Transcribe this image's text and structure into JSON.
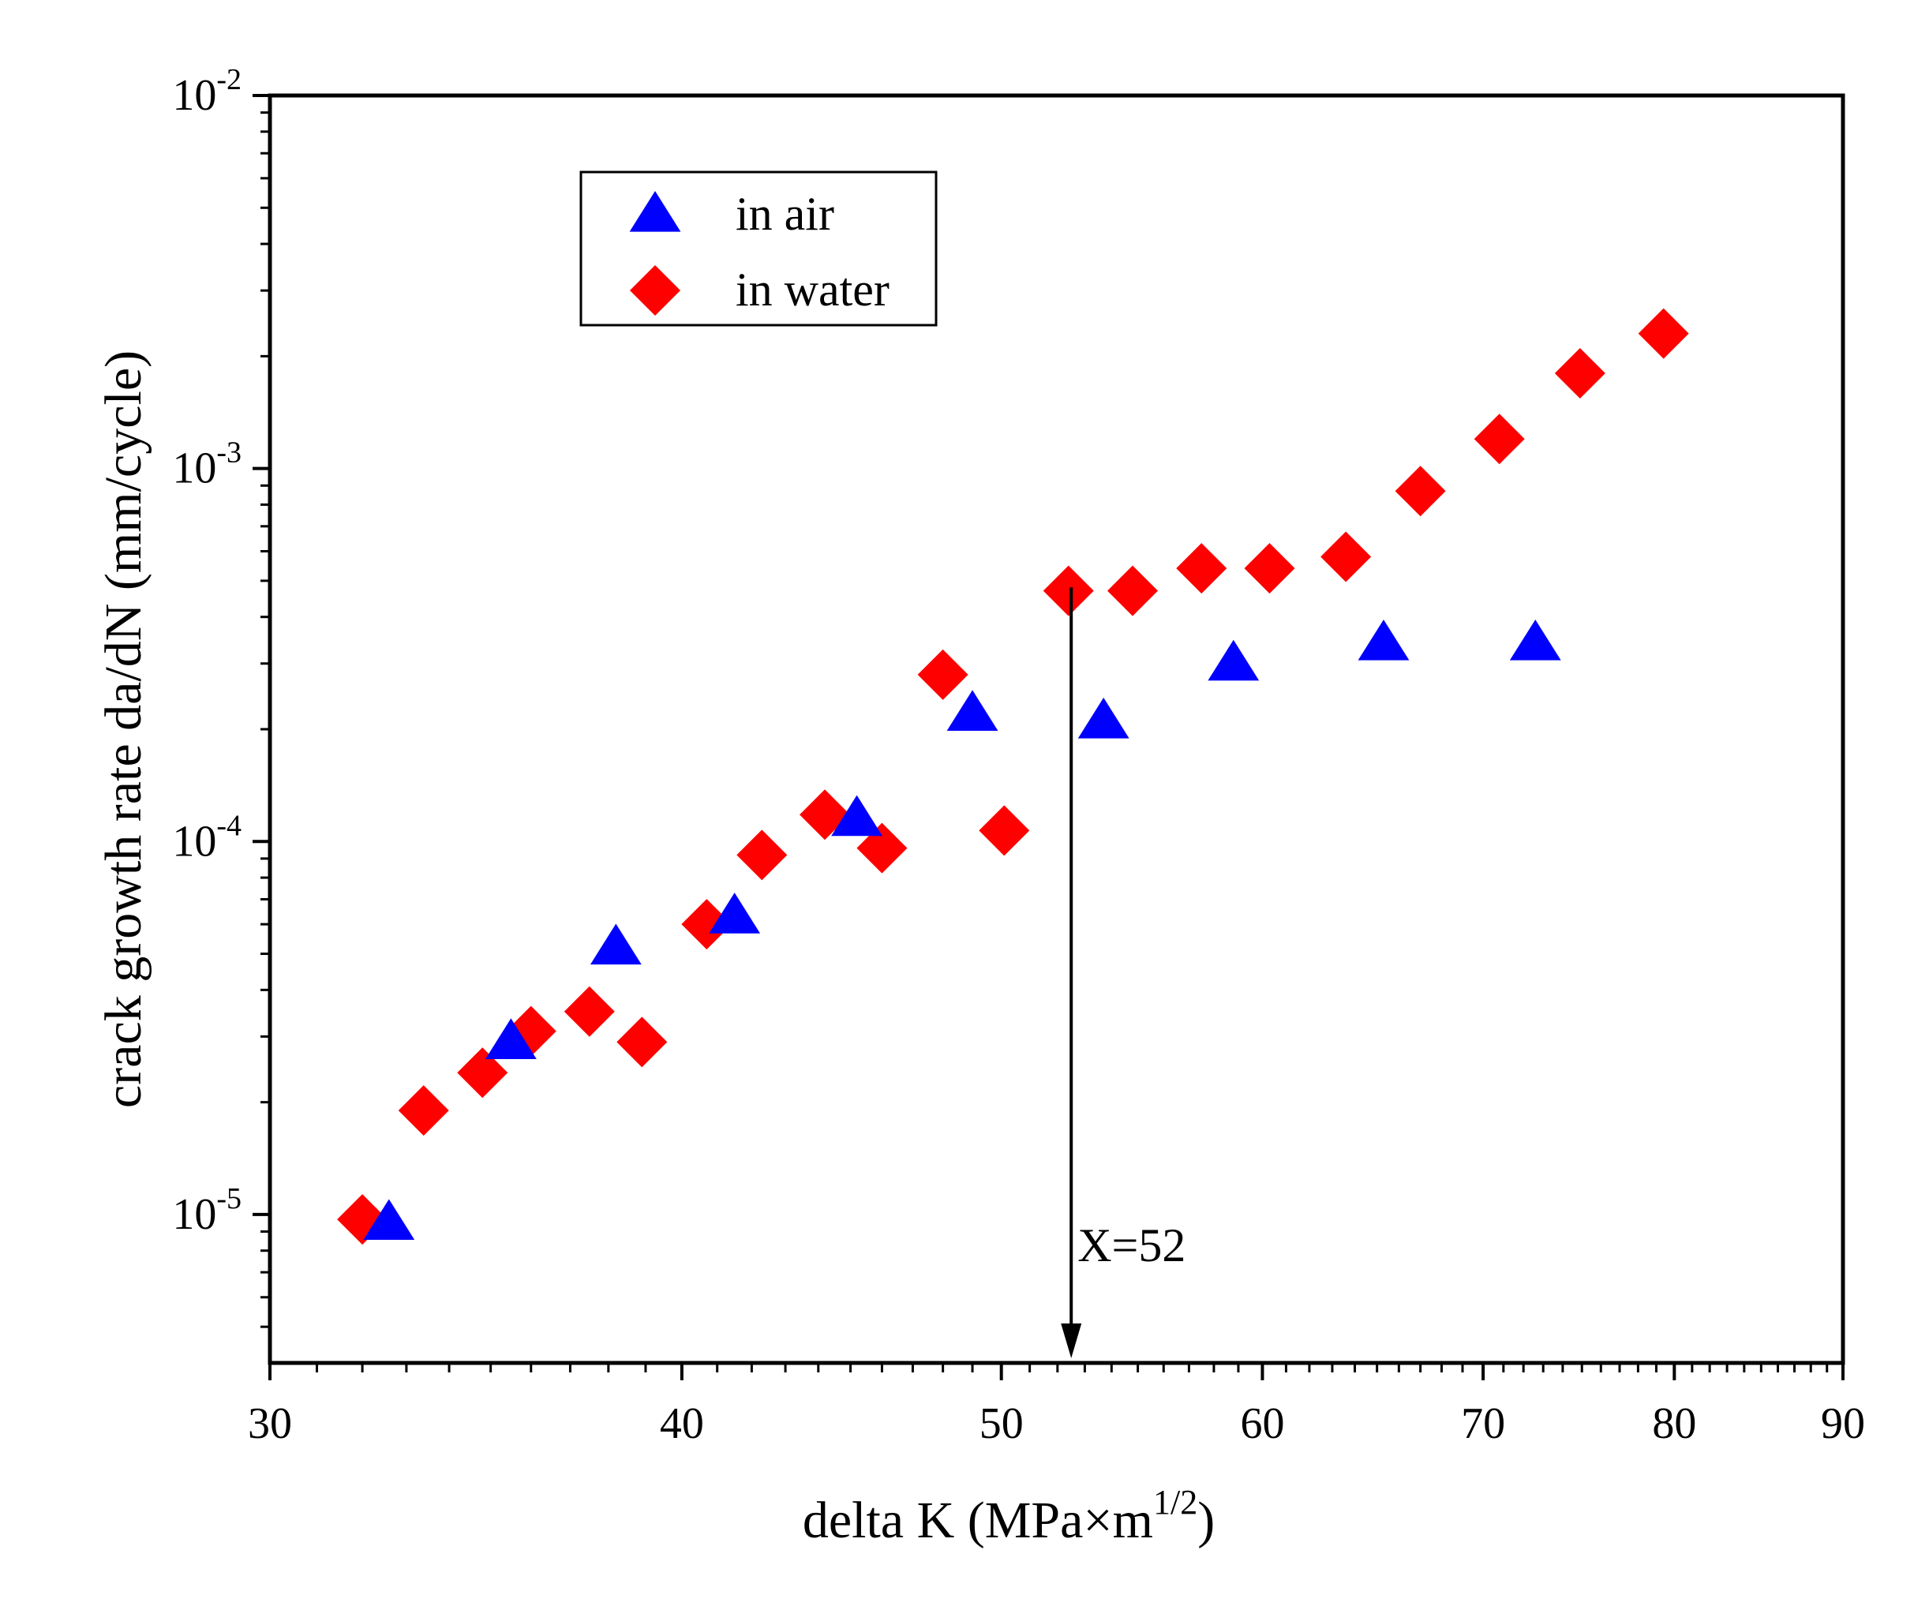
{
  "chart_data": {
    "type": "scatter",
    "title": "",
    "xlabel": "delta K (MPa×m",
    "xlabel_sup": "1/2",
    "xlabel_close": ")",
    "ylabel": "crack growth rate da/dN (mm/cycle)",
    "x_scale": "log",
    "y_scale": "log",
    "xlim": [
      30,
      90
    ],
    "ylim": [
      4e-06,
      0.01
    ],
    "x_ticks": [
      {
        "value": 30,
        "label": "30"
      },
      {
        "value": 40,
        "label": "40"
      },
      {
        "value": 50,
        "label": "50"
      },
      {
        "value": 60,
        "label": "60"
      },
      {
        "value": 70,
        "label": "70"
      },
      {
        "value": 80,
        "label": "80"
      },
      {
        "value": 90,
        "label": "90"
      }
    ],
    "y_ticks": [
      {
        "value": 1e-05,
        "base": "10",
        "exp": "-5"
      },
      {
        "value": 0.0001,
        "base": "10",
        "exp": "-4"
      },
      {
        "value": 0.001,
        "base": "10",
        "exp": "-3"
      },
      {
        "value": 0.01,
        "base": "10",
        "exp": "-2"
      }
    ],
    "legend_position": "top-left",
    "series": [
      {
        "name": "in air",
        "marker": "triangle",
        "color": "#0000ff",
        "points": [
          {
            "x": 32.6,
            "y": 9.5e-06
          },
          {
            "x": 35.5,
            "y": 2.9e-05
          },
          {
            "x": 38.2,
            "y": 5.2e-05
          },
          {
            "x": 41.5,
            "y": 6.3e-05
          },
          {
            "x": 45.2,
            "y": 0.000115
          },
          {
            "x": 49.0,
            "y": 0.00022
          },
          {
            "x": 53.7,
            "y": 0.00021
          },
          {
            "x": 58.8,
            "y": 0.0003
          },
          {
            "x": 65.3,
            "y": 0.00034
          },
          {
            "x": 72.6,
            "y": 0.00034
          }
        ]
      },
      {
        "name": "in water",
        "marker": "diamond",
        "color": "#ff0000",
        "points": [
          {
            "x": 32.0,
            "y": 9.7e-06
          },
          {
            "x": 33.4,
            "y": 1.9e-05
          },
          {
            "x": 34.8,
            "y": 2.4e-05
          },
          {
            "x": 36.0,
            "y": 3.1e-05
          },
          {
            "x": 37.5,
            "y": 3.5e-05
          },
          {
            "x": 38.9,
            "y": 2.9e-05
          },
          {
            "x": 40.7,
            "y": 6e-05
          },
          {
            "x": 42.3,
            "y": 9.2e-05
          },
          {
            "x": 44.2,
            "y": 0.000118
          },
          {
            "x": 46.0,
            "y": 9.6e-05
          },
          {
            "x": 48.0,
            "y": 0.00028
          },
          {
            "x": 50.1,
            "y": 0.000107
          },
          {
            "x": 52.4,
            "y": 0.00047
          },
          {
            "x": 54.8,
            "y": 0.00047
          },
          {
            "x": 57.5,
            "y": 0.00054
          },
          {
            "x": 60.3,
            "y": 0.00054
          },
          {
            "x": 63.6,
            "y": 0.00058
          },
          {
            "x": 67.0,
            "y": 0.00087
          },
          {
            "x": 70.8,
            "y": 0.0012
          },
          {
            "x": 74.9,
            "y": 0.0018
          },
          {
            "x": 79.4,
            "y": 0.0023
          }
        ]
      }
    ],
    "annotations": [
      {
        "text": "X=52",
        "x": 52.5,
        "y_from": 0.00048,
        "y_to": 4e-06
      }
    ]
  }
}
